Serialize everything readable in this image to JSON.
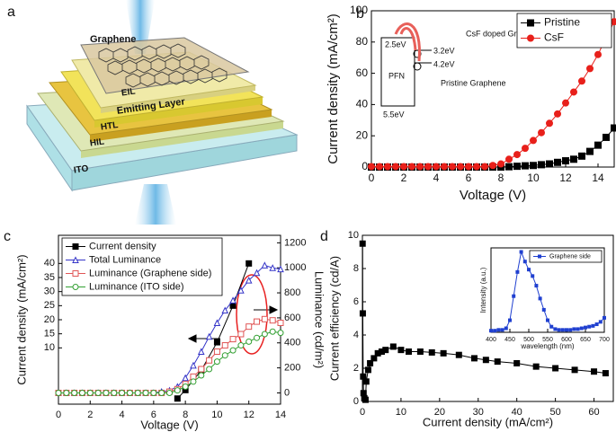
{
  "diagram": {
    "panel": "a",
    "layers": [
      "Graphene",
      "EIL",
      "Emitting Layer",
      "HTL",
      "HIL",
      "ITO"
    ]
  },
  "chart_data": [
    {
      "type": "line",
      "panel": "b",
      "xlabel": "Voltage (V)",
      "ylabel": "Current density (mA/cm²)",
      "xlim": [
        0,
        15
      ],
      "ylim": [
        0,
        100
      ],
      "xticks": [
        0,
        2,
        4,
        6,
        8,
        10,
        12,
        14
      ],
      "yticks": [
        0,
        20,
        40,
        60,
        80,
        100
      ],
      "legend": "upper right",
      "inset_labels": [
        "CsF doped Graphene",
        "2.5eV",
        "3.2eV",
        "4.2eV",
        "PFN",
        "Pristine Graphene",
        "5.5eV"
      ],
      "x": [
        0,
        0.5,
        1,
        1.5,
        2,
        2.5,
        3,
        3.5,
        4,
        4.5,
        5,
        5.5,
        6,
        6.5,
        7,
        7.5,
        8,
        8.5,
        9,
        9.5,
        10,
        10.5,
        11,
        11.5,
        12,
        12.5,
        13,
        13.5,
        14,
        14.5,
        15
      ],
      "series": [
        {
          "name": "Pristine",
          "color": "#000000",
          "marker": "square",
          "values": [
            0,
            0,
            0,
            0,
            0,
            0,
            0,
            0,
            0,
            0,
            0,
            0,
            0,
            0,
            0,
            0,
            0,
            0.2,
            0.5,
            0.8,
            1,
            1.5,
            2,
            3,
            4,
            5,
            7,
            10,
            14,
            19,
            25
          ]
        },
        {
          "name": "CsF",
          "color": "#e8201b",
          "marker": "circle",
          "values": [
            0.3,
            0.3,
            0.3,
            0.3,
            0.3,
            0.3,
            0.3,
            0.3,
            0.3,
            0.3,
            0.3,
            0.3,
            0.3,
            0.3,
            0.3,
            1,
            2,
            5,
            8,
            12,
            17,
            22,
            28,
            34,
            41,
            48,
            55,
            63,
            72,
            83,
            93
          ]
        }
      ]
    },
    {
      "type": "line",
      "panel": "c",
      "xlabel": "Voltage (V)",
      "ylabel": "Current density (mA/cm²)",
      "y2label": "Luminance (cd/m²)",
      "xlim": [
        0,
        14
      ],
      "ylim": [
        -10,
        50
      ],
      "y2lim": [
        -90,
        1260
      ],
      "xticks": [
        0,
        2,
        4,
        6,
        8,
        10,
        12,
        14
      ],
      "yticks": [
        10,
        15,
        20,
        25,
        30,
        35,
        40
      ],
      "y2ticks": [
        0,
        200,
        400,
        600,
        800,
        1000,
        1200
      ],
      "legend": "upper left",
      "x": [
        0,
        0.5,
        1,
        1.5,
        2,
        2.5,
        3,
        3.5,
        4,
        4.5,
        5,
        5.5,
        6,
        6.5,
        7,
        7.5,
        8,
        8.5,
        9,
        9.5,
        10,
        10.5,
        11,
        11.5,
        12,
        12.5,
        13,
        13.5,
        14
      ],
      "series": [
        {
          "name": "Current density",
          "color": "#000000",
          "marker": "square",
          "x": [
            7.5,
            8,
            9,
            10,
            11,
            12
          ],
          "values": [
            -8,
            -5,
            2,
            12,
            25,
            40
          ]
        },
        {
          "name": "Total Luminance",
          "color": "#3535c8",
          "marker": "triangle",
          "hollow": true,
          "axis": "y2",
          "values": [
            0,
            0,
            0,
            0,
            0,
            0,
            0,
            0,
            0,
            0,
            0,
            0,
            0,
            10,
            20,
            50,
            120,
            220,
            330,
            450,
            560,
            660,
            740,
            820,
            900,
            960,
            1020,
            1000,
            990
          ]
        },
        {
          "name": "Luminance (Graphene side)",
          "color": "#e05555",
          "marker": "square",
          "hollow": true,
          "axis": "y2",
          "values": [
            0,
            0,
            0,
            0,
            0,
            0,
            0,
            0,
            0,
            0,
            0,
            0,
            0,
            0,
            10,
            30,
            70,
            130,
            190,
            260,
            330,
            380,
            430,
            470,
            530,
            570,
            590,
            580,
            560
          ]
        },
        {
          "name": "Luminance (ITO side)",
          "color": "#33a033",
          "marker": "circle",
          "hollow": true,
          "axis": "y2",
          "values": [
            0,
            0,
            0,
            0,
            0,
            0,
            0,
            0,
            0,
            0,
            0,
            0,
            0,
            0,
            0,
            20,
            50,
            90,
            140,
            190,
            250,
            300,
            340,
            380,
            410,
            440,
            470,
            490,
            480
          ]
        }
      ]
    },
    {
      "type": "line",
      "panel": "d",
      "xlabel": "Current density (mA/cm²)",
      "ylabel": "Current efficiency (cd/A)",
      "xlim": [
        0,
        65
      ],
      "ylim": [
        0,
        10
      ],
      "xticks": [
        0,
        10,
        20,
        30,
        40,
        50,
        60
      ],
      "yticks": [
        0,
        2,
        4,
        6,
        8,
        10
      ],
      "series": [
        {
          "name": null,
          "color": "#000000",
          "marker": "square",
          "x": [
            0.05,
            0.1,
            0.2,
            0.3,
            0.5,
            0.8,
            1,
            1.5,
            2,
            3,
            4,
            5,
            6,
            8,
            10,
            12,
            15,
            18,
            21,
            25,
            29,
            32,
            35,
            40,
            45,
            50,
            55,
            60,
            63
          ],
          "values": [
            9.5,
            5.3,
            1.5,
            0.5,
            0.2,
            0.1,
            1.2,
            1.9,
            2.3,
            2.6,
            2.9,
            3.0,
            3.1,
            3.3,
            3.1,
            3.0,
            3.0,
            2.95,
            2.9,
            2.8,
            2.6,
            2.5,
            2.4,
            2.3,
            2.1,
            2.0,
            1.9,
            1.8,
            1.7
          ]
        }
      ]
    },
    {
      "type": "line",
      "xlabel": "wavelength (nm)",
      "ylabel": "Intensity (a.u.)",
      "xlim": [
        400,
        700
      ],
      "ylim": [
        0,
        1.05
      ],
      "xticks": [
        400,
        450,
        500,
        550,
        600,
        650,
        700
      ],
      "legend": "upper right",
      "x": [
        400,
        410,
        420,
        430,
        440,
        450,
        460,
        470,
        480,
        490,
        500,
        510,
        520,
        530,
        540,
        550,
        560,
        570,
        580,
        590,
        600,
        610,
        620,
        630,
        640,
        650,
        660,
        670,
        680,
        690,
        700
      ],
      "series": [
        {
          "name": "Graphene side",
          "color": "#2040d0",
          "marker": "square",
          "values": [
            0.02,
            0.02,
            0.03,
            0.03,
            0.05,
            0.15,
            0.45,
            0.75,
            1.0,
            0.88,
            0.78,
            0.7,
            0.58,
            0.42,
            0.28,
            0.15,
            0.07,
            0.04,
            0.03,
            0.03,
            0.03,
            0.03,
            0.04,
            0.04,
            0.05,
            0.06,
            0.07,
            0.08,
            0.1,
            0.13,
            0.18
          ]
        }
      ]
    }
  ]
}
